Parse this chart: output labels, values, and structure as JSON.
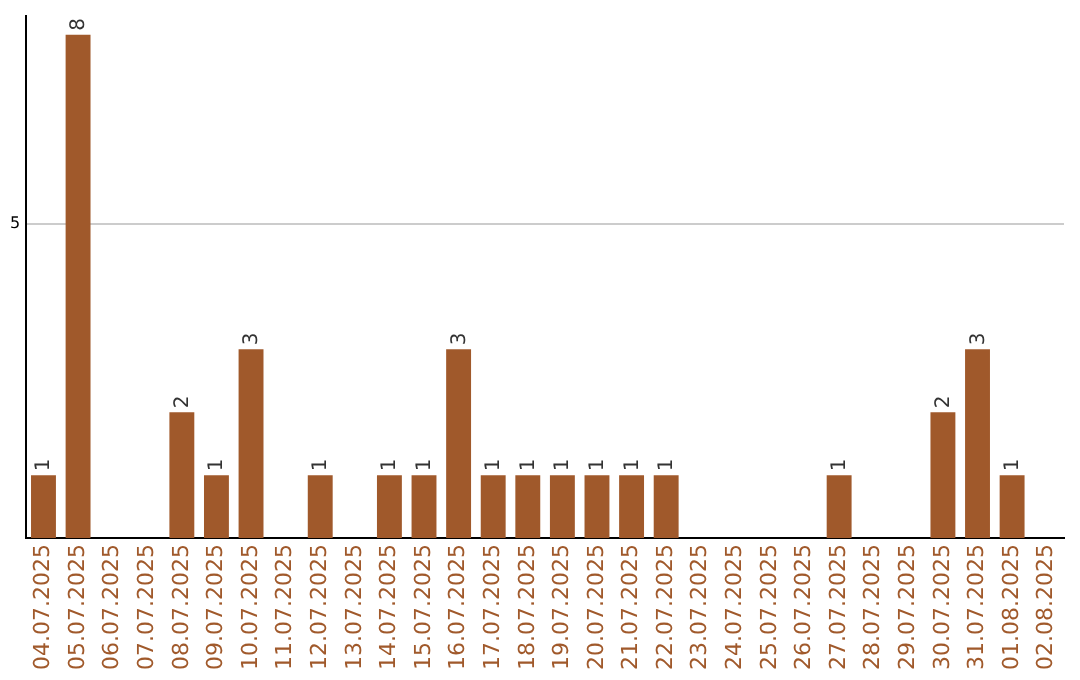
{
  "chart_data": {
    "type": "bar",
    "categories": [
      "04.07.2025",
      "05.07.2025",
      "06.07.2025",
      "07.07.2025",
      "08.07.2025",
      "09.07.2025",
      "10.07.2025",
      "11.07.2025",
      "12.07.2025",
      "13.07.2025",
      "14.07.2025",
      "15.07.2025",
      "16.07.2025",
      "17.07.2025",
      "18.07.2025",
      "19.07.2025",
      "20.07.2025",
      "21.07.2025",
      "22.07.2025",
      "23.07.2025",
      "24.07.2025",
      "25.07.2025",
      "26.07.2025",
      "27.07.2025",
      "28.07.2025",
      "29.07.2025",
      "30.07.2025",
      "31.07.2025",
      "01.08.2025",
      "02.08.2025"
    ],
    "values": [
      1,
      8,
      0,
      0,
      2,
      1,
      3,
      0,
      1,
      0,
      1,
      1,
      3,
      1,
      1,
      1,
      1,
      1,
      1,
      0,
      0,
      0,
      0,
      1,
      0,
      0,
      2,
      3,
      1,
      0
    ],
    "value_labels": [
      "1",
      "8",
      null,
      null,
      "2",
      "1",
      "3",
      null,
      "1",
      null,
      "1",
      "1",
      "3",
      "1",
      "1",
      "1",
      "1",
      "1",
      "1",
      null,
      null,
      null,
      null,
      "1",
      null,
      null,
      "2",
      "3",
      "1",
      null
    ],
    "color": "#a0592b",
    "ylim": [
      0,
      8.3
    ],
    "yticks": [
      5
    ],
    "grid": "y",
    "legend": false
  }
}
